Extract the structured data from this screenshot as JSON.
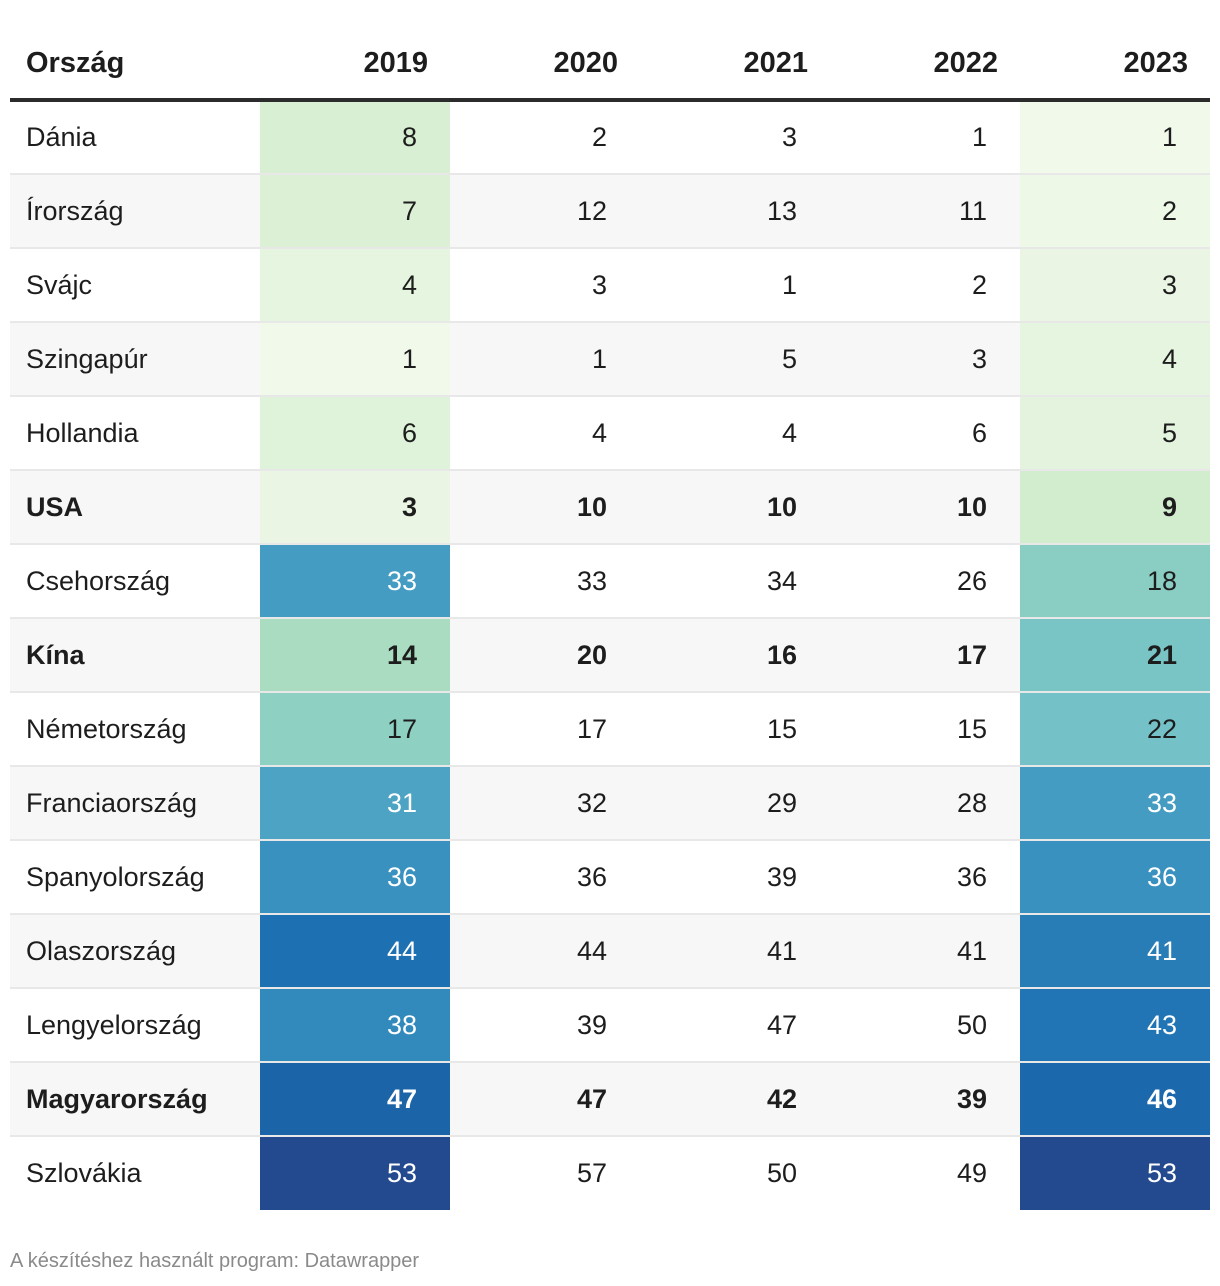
{
  "chart_data": {
    "type": "table",
    "columns": [
      "Ország",
      "2019",
      "2020",
      "2021",
      "2022",
      "2023"
    ],
    "rows": [
      {
        "country": "Dánia",
        "values": [
          8,
          2,
          3,
          1,
          1
        ],
        "bold": false
      },
      {
        "country": "Írország",
        "values": [
          7,
          12,
          13,
          11,
          2
        ],
        "bold": false
      },
      {
        "country": "Svájc",
        "values": [
          4,
          3,
          1,
          2,
          3
        ],
        "bold": false
      },
      {
        "country": "Szingapúr",
        "values": [
          1,
          1,
          5,
          3,
          4
        ],
        "bold": false
      },
      {
        "country": "Hollandia",
        "values": [
          6,
          4,
          4,
          6,
          5
        ],
        "bold": false
      },
      {
        "country": "USA",
        "values": [
          3,
          10,
          10,
          10,
          9
        ],
        "bold": true
      },
      {
        "country": "Csehország",
        "values": [
          33,
          33,
          34,
          26,
          18
        ],
        "bold": false
      },
      {
        "country": "Kína",
        "values": [
          14,
          20,
          16,
          17,
          21
        ],
        "bold": true
      },
      {
        "country": "Németország",
        "values": [
          17,
          17,
          15,
          15,
          22
        ],
        "bold": false
      },
      {
        "country": "Franciaország",
        "values": [
          31,
          32,
          29,
          28,
          33
        ],
        "bold": false
      },
      {
        "country": "Spanyolország",
        "values": [
          36,
          36,
          39,
          36,
          36
        ],
        "bold": false
      },
      {
        "country": "Olaszország",
        "values": [
          44,
          44,
          41,
          41,
          41
        ],
        "bold": false
      },
      {
        "country": "Lengyelország",
        "values": [
          38,
          39,
          47,
          50,
          43
        ],
        "bold": false
      },
      {
        "country": "Magyarország",
        "values": [
          47,
          47,
          42,
          39,
          46
        ],
        "bold": true
      },
      {
        "country": "Szlovákia",
        "values": [
          53,
          57,
          50,
          49,
          53
        ],
        "bold": false
      }
    ],
    "heatmap_columns": [
      "2019",
      "2023"
    ],
    "color_scale": [
      "#f1f9ea",
      "#d8efd3",
      "#bfe5c0",
      "#93d3c1",
      "#69bcc9",
      "#3991c0",
      "#1a6db0",
      "#234a8e"
    ],
    "color_domain": [
      1,
      8,
      12,
      16,
      24,
      36,
      45,
      53
    ]
  },
  "footer": "A készítéshez használt program: Datawrapper"
}
